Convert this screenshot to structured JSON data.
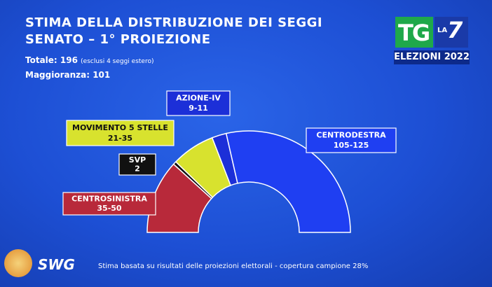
{
  "header": {
    "title_line1": "STIMA DELLA DISTRIBUZIONE DEI SEGGI",
    "title_line2": "SENATO – 1° PROIEZIONE",
    "total": "Totale: 196",
    "total_note": "(esclusi 4 seggi estero)",
    "majority": "Maggioranza: 101"
  },
  "logo": {
    "tg": "TG",
    "la": "LA",
    "seven": "7",
    "caption": "ELEZIONI 2022"
  },
  "footer": {
    "source": "SWG",
    "note": "Stima basata su risultati delle proiezioni elettorali - copertura campione 28%"
  },
  "chart_data": {
    "type": "semicircle",
    "categories": [
      "CENTROSINISTRA",
      "SVP",
      "MOVIMENTO 5 STELLE",
      "AZIONE-IV",
      "CENTRODESTRA"
    ],
    "range_labels": [
      "35-50",
      "2",
      "21-35",
      "9-11",
      "105-125"
    ],
    "values": [
      46,
      2,
      27,
      9,
      112
    ],
    "colors": [
      "#b8293a",
      "#111111",
      "#d8e22e",
      "#1c2fd8",
      "#1f3ff2"
    ]
  }
}
